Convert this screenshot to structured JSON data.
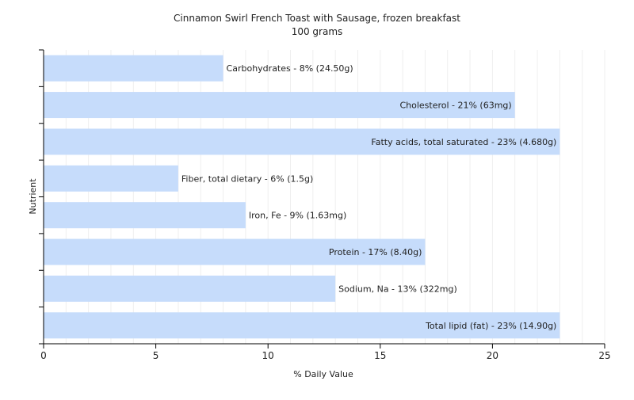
{
  "chart_data": {
    "type": "bar",
    "orientation": "horizontal",
    "title": "Cinnamon Swirl French Toast with Sausage, frozen breakfast",
    "subtitle": "100 grams",
    "xlabel": "% Daily Value",
    "ylabel": "Nutrient",
    "xlim": [
      0,
      25
    ],
    "xticks": [
      0,
      5,
      10,
      15,
      20,
      25
    ],
    "grid": true,
    "bar_color": "#c6dcfb",
    "categories": [
      "Carbohydrates",
      "Cholesterol",
      "Fatty acids, total saturated",
      "Fiber, total dietary",
      "Iron, Fe",
      "Protein",
      "Sodium, Na",
      "Total lipid (fat)"
    ],
    "values": [
      8,
      21,
      23,
      6,
      9,
      17,
      13,
      23
    ],
    "labels": [
      "Carbohydrates - 8% (24.50g)",
      "Cholesterol - 21% (63mg)",
      "Fatty acids, total saturated - 23% (4.680g)",
      "Fiber, total dietary - 6% (1.5g)",
      "Iron, Fe - 9% (1.63mg)",
      "Protein - 17% (8.40g)",
      "Sodium, Na - 13% (322mg)",
      "Total lipid (fat) - 23% (14.90g)"
    ]
  }
}
